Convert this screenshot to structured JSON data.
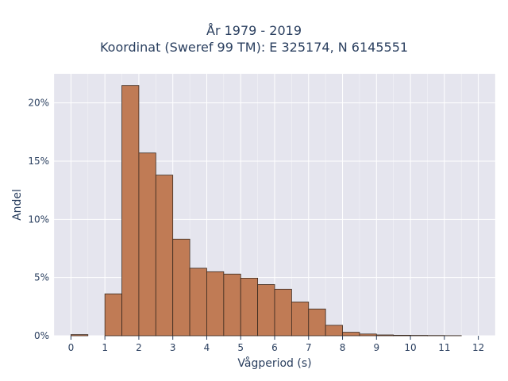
{
  "chart_data": {
    "type": "bar",
    "title": "År 1979 - 2019",
    "subtitle": "Koordinat (Sweref 99 TM): E 325174, N 6145551",
    "xlabel": "Vågperiod (s)",
    "ylabel": "Andel",
    "xlim": [
      -0.5,
      12.5
    ],
    "ylim": [
      0,
      22.5
    ],
    "x_ticks": [
      0,
      1,
      2,
      3,
      4,
      5,
      6,
      7,
      8,
      9,
      10,
      11,
      12
    ],
    "y_ticks": [
      0,
      5,
      10,
      15,
      20
    ],
    "y_tick_suffix": "%",
    "bin_width": 0.5,
    "bin_starts": [
      0,
      0.5,
      1,
      1.5,
      2,
      2.5,
      3,
      3.5,
      4,
      4.5,
      5,
      5.5,
      6,
      6.5,
      7,
      7.5,
      8,
      8.5,
      9,
      9.5,
      10,
      10.5,
      11,
      11.5
    ],
    "values": [
      0.1,
      0,
      3.6,
      21.5,
      15.7,
      13.8,
      8.3,
      5.8,
      5.5,
      5.3,
      4.95,
      4.4,
      4.0,
      2.9,
      2.3,
      0.9,
      0.3,
      0.15,
      0.07,
      0.04,
      0.03,
      0.02,
      0.01,
      0
    ],
    "bar_color": "#c07b55",
    "bar_edge_color": "#3a2a20",
    "plot_bg": "#e5e5ee",
    "grid": true
  }
}
